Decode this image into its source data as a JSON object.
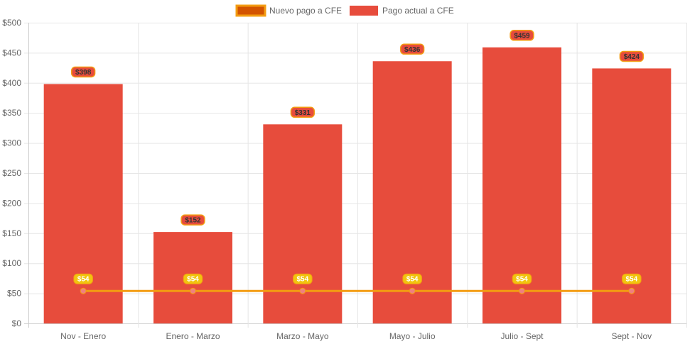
{
  "chart_data": {
    "type": "bar",
    "categories": [
      "Nov - Enero",
      "Enero - Marzo",
      "Marzo - Mayo",
      "Mayo - Julio",
      "Julio - Sept",
      "Sept - Nov"
    ],
    "series": [
      {
        "name": "Nuevo pago a CFE",
        "type": "line",
        "values": [
          54,
          54,
          54,
          54,
          54,
          54
        ],
        "labels": [
          "$54",
          "$54",
          "$54",
          "$54",
          "$54",
          "$54"
        ],
        "color": "#f39c12",
        "legend_fill": "#d35400",
        "label_bg": "#f1c40f",
        "label_text_color": "#ffffff"
      },
      {
        "name": "Pago actual a CFE",
        "type": "bar",
        "values": [
          398,
          152,
          331,
          436,
          459,
          424
        ],
        "labels": [
          "$398",
          "$152",
          "$331",
          "$436",
          "$459",
          "$424"
        ],
        "color": "#e74c3c",
        "label_border": "#f39c12",
        "label_text_color": "#333333"
      }
    ],
    "y_ticks": [
      "$0",
      "$50",
      "$100",
      "$150",
      "$200",
      "$250",
      "$300",
      "$350",
      "$400",
      "$450",
      "$500"
    ],
    "ylim": [
      0,
      500
    ],
    "y_step": 50,
    "grid": true,
    "legend_position": "top-center",
    "title": "",
    "xlabel": "",
    "ylabel": ""
  }
}
